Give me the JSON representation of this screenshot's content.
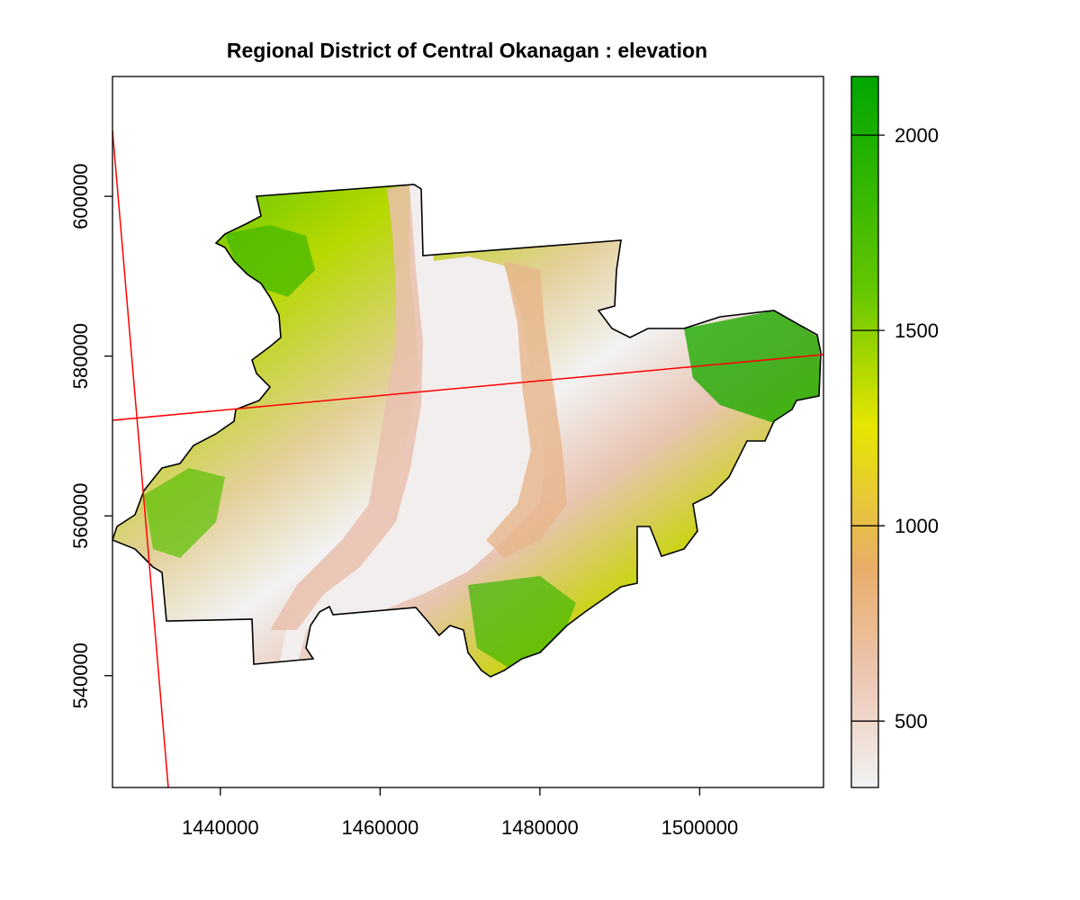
{
  "title": "Regional District of Central Okanagan : elevation",
  "map": {
    "x_range": [
      1426500,
      1515500
    ],
    "y_range": [
      526000,
      615000
    ],
    "x_ticks": [
      1440000,
      1460000,
      1480000,
      1500000
    ],
    "x_tick_labels": [
      "1440000",
      "1460000",
      "1480000",
      "1500000"
    ],
    "y_ticks": [
      540000,
      560000,
      580000,
      600000
    ],
    "y_tick_labels": [
      "540000",
      "560000",
      "580000",
      "600000"
    ],
    "boundary_color": "#000000",
    "line_color": "#ff0000"
  },
  "legend": {
    "range": [
      330,
      2150
    ],
    "ticks": [
      500,
      1000,
      1500,
      2000
    ],
    "tick_labels": [
      "500",
      "1000",
      "1500",
      "2000"
    ],
    "color_stops": [
      {
        "value": 330,
        "color": "#f2f2f2"
      },
      {
        "value": 600,
        "color": "#edc8b6"
      },
      {
        "value": 900,
        "color": "#e8ad68"
      },
      {
        "value": 1250,
        "color": "#e6e600"
      },
      {
        "value": 1600,
        "color": "#63c600"
      },
      {
        "value": 2150,
        "color": "#00a600"
      }
    ]
  }
}
